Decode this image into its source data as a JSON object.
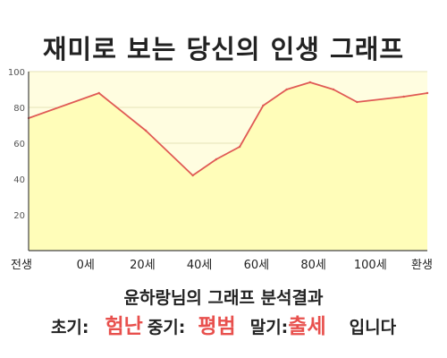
{
  "title": "재미로 보는 당신의 인생 그래프",
  "chart_data": {
    "type": "area",
    "title": "재미로 보는 당신의 인생 그래프",
    "x_ticks": [
      "전생",
      "0세",
      "20세",
      "40세",
      "60세",
      "80세",
      "100세",
      "환생"
    ],
    "x": [
      -15,
      0,
      10,
      20,
      25,
      30,
      35,
      40,
      45,
      50,
      55,
      65,
      70
    ],
    "y": [
      74,
      88,
      67,
      42,
      51,
      58,
      81,
      90,
      94,
      90,
      83,
      86,
      88
    ],
    "ylim": [
      0,
      100
    ],
    "y_ticks": [
      20,
      40,
      60,
      80,
      100
    ],
    "xlabel": "",
    "ylabel": "",
    "grid": "horizontal",
    "line_color": "#e05a55",
    "fill_color": "#fffdb9",
    "plot_bg": "#fffde0"
  },
  "analysis": {
    "heading": "윤하랑님의 그래프 분석결과",
    "early_label": "초기:",
    "early_value": "험난",
    "mid_label": "중기:",
    "mid_value": "평범",
    "late_label": "말기:",
    "late_value": "출세",
    "suffix": "입니다"
  },
  "colors": {
    "highlight": "#e8504d",
    "axis": "#444444",
    "grid": "#e6e2b8"
  }
}
